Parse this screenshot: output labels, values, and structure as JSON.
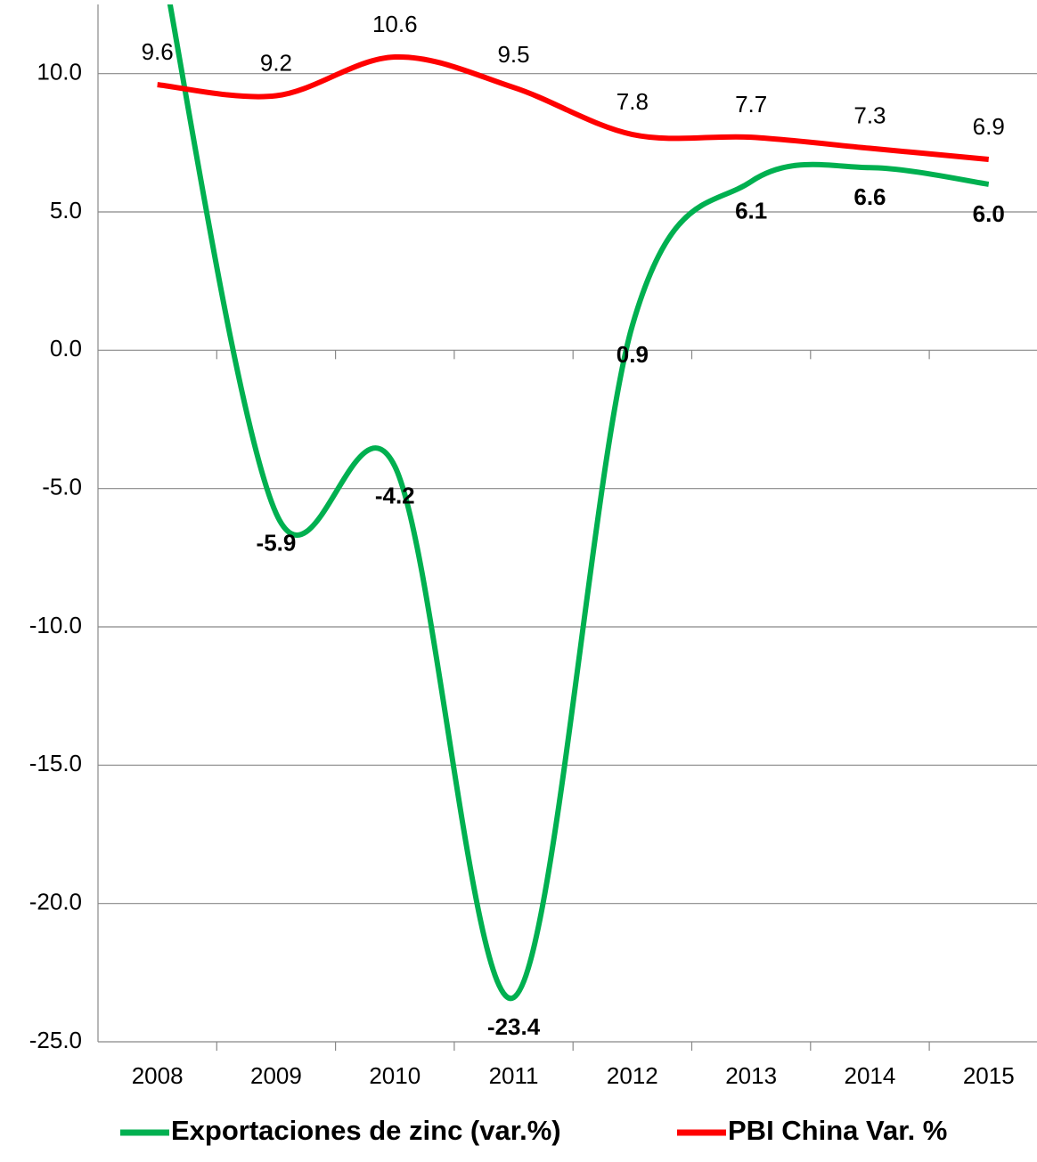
{
  "chart_data": {
    "type": "line",
    "categories": [
      "2008",
      "2009",
      "2010",
      "2011",
      "2012",
      "2013",
      "2014",
      "2015"
    ],
    "series": [
      {
        "name": "Exportaciones de zinc (var.%)",
        "color": "#00b050",
        "values": [
          15,
          -5.9,
          -4.2,
          -23.4,
          0.9,
          6.1,
          6.6,
          6.0
        ],
        "value_labels": [
          null,
          "-5.9",
          "-4.2",
          "-23.4",
          "0.9",
          "6.1",
          "6.6",
          "6.0"
        ]
      },
      {
        "name": "PBI China Var. %",
        "color": "#ff0000",
        "values": [
          9.6,
          9.2,
          10.6,
          9.5,
          7.8,
          7.7,
          7.3,
          6.9
        ],
        "value_labels": [
          "9.6",
          "9.2",
          "10.6",
          "9.5",
          "7.8",
          "7.7",
          "7.3",
          "6.9"
        ]
      }
    ],
    "ylim": [
      -25,
      12.5
    ],
    "yticks": [
      {
        "value": -25,
        "label": "-25.0"
      },
      {
        "value": -20,
        "label": "-20.0"
      },
      {
        "value": -15,
        "label": "-15.0"
      },
      {
        "value": -10,
        "label": "-10.0"
      },
      {
        "value": -5,
        "label": "-5.0"
      },
      {
        "value": 0,
        "label": "0.0"
      },
      {
        "value": 5,
        "label": "5.0"
      },
      {
        "value": 10,
        "label": "10.0"
      }
    ],
    "grid": true,
    "smooth": true,
    "legend": "bottom"
  }
}
